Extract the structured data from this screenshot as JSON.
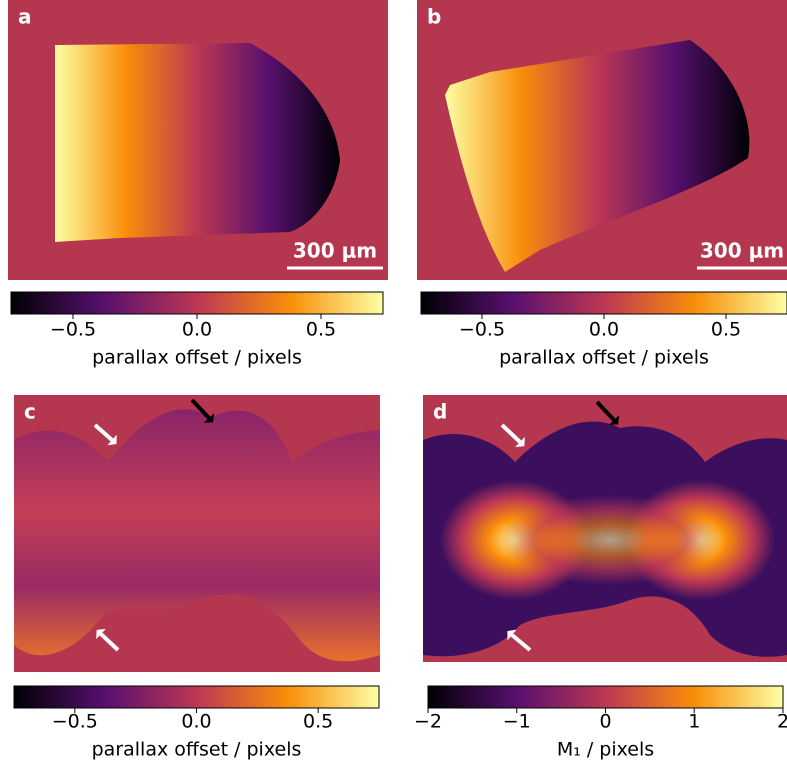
{
  "chart_data": [
    {
      "type": "image",
      "label": "a",
      "scale_bar": "300 μm",
      "colormap": "inferno",
      "background": "#b5364f",
      "clim": [
        -0.75,
        0.75
      ],
      "cticks": [
        {
          "value": -0.5,
          "label": "−0.5"
        },
        {
          "value": 0,
          "label": "0.0"
        },
        0.5
      ],
      "colorbar_label": "parallax offset / pixels"
    },
    {
      "type": "image",
      "label": "b",
      "scale_bar": "300 μm",
      "colormap": "inferno",
      "background": "#b5364f",
      "clim": [
        -0.75,
        0.75
      ],
      "cticks": [
        {
          "value": -0.5,
          "label": "−0.5"
        },
        {
          "value": 0,
          "label": "0.0"
        },
        0.5
      ],
      "colorbar_label": "parallax offset / pixels"
    },
    {
      "type": "image",
      "label": "c",
      "colormap": "inferno",
      "background": "#b5364f",
      "clim": [
        -0.75,
        0.75
      ],
      "cticks": [
        {
          "value": -0.5,
          "label": "−0.5"
        },
        {
          "value": 0,
          "label": "0.0"
        },
        0.5
      ],
      "colorbar_label": "parallax offset / pixels"
    },
    {
      "type": "image",
      "label": "d",
      "colormap": "inferno",
      "background": "#b5364f",
      "clim": [
        -2,
        2
      ],
      "cticks": [
        {
          "value": -2,
          "label": "−2"
        },
        {
          "value": -1,
          "label": "−1"
        },
        0,
        1,
        2
      ],
      "colorbar_label": "M₁ / pixels"
    }
  ]
}
